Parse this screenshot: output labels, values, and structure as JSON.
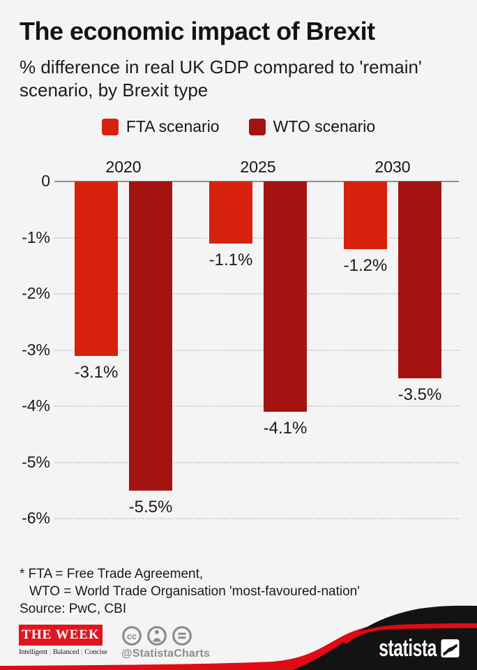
{
  "page": {
    "background": "#f4f4f4"
  },
  "header": {
    "title": "The economic impact of Brexit",
    "subtitle": "% difference in real UK GDP compared to 'remain' scenario, by Brexit type"
  },
  "chart_data": {
    "type": "bar",
    "title": "The economic impact of Brexit",
    "subtitle": "% difference in real UK GDP compared to 'remain' scenario, by Brexit type",
    "categories": [
      "2020",
      "2025",
      "2030"
    ],
    "series": [
      {
        "name": "FTA scenario",
        "color": "#d6220d",
        "values": [
          -3.1,
          -1.1,
          -1.2
        ],
        "labels": [
          "-3.1%",
          "-1.1%",
          "-1.2%"
        ]
      },
      {
        "name": "WTO scenario",
        "color": "#a31311",
        "values": [
          -5.5,
          -4.1,
          -3.5
        ],
        "labels": [
          "-5.5%",
          "-4.1%",
          "-3.5%"
        ]
      }
    ],
    "y_ticks": [
      {
        "value": 0,
        "label": "0"
      },
      {
        "value": -1,
        "label": "-1%"
      },
      {
        "value": -2,
        "label": "-2%"
      },
      {
        "value": -3,
        "label": "-3%"
      },
      {
        "value": -4,
        "label": "-4%"
      },
      {
        "value": -5,
        "label": "-5%"
      },
      {
        "value": -6,
        "label": "-6%"
      }
    ],
    "ylim": [
      -6.5,
      0
    ],
    "grid": "horizontal-dotted",
    "legend_position": "top-center",
    "axis_color": "#8f8f8f",
    "grid_color": "#cbcbcb"
  },
  "footnote": {
    "line1": "* FTA = Free Trade Agreement,",
    "line2": "WTO = World Trade Organisation 'most-favoured-nation'",
    "source": "Source: PwC, CBI"
  },
  "footer": {
    "week": {
      "name": "THE WEEK",
      "box_color": "#e0161e",
      "tagline": [
        "Intelligent",
        "Balanced",
        "Concise"
      ]
    },
    "license_icons": [
      "cc-icon",
      "attribution-icon",
      "equals-icon"
    ],
    "icon_color": "#8c8c8c",
    "credit": "@StatistaCharts",
    "brand": "statista",
    "colors": {
      "stripe_red": "#e00b14",
      "wedge_black": "#131313"
    }
  }
}
